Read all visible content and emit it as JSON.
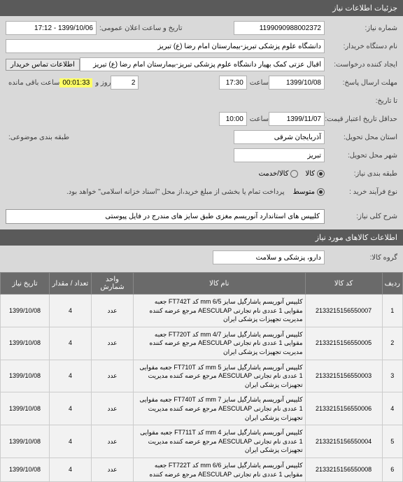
{
  "header": {
    "title": "جزئیات اطلاعات نیاز"
  },
  "form": {
    "need_no_label": "شماره نیاز:",
    "need_no": "1199090988002372",
    "announce_label": "تاریخ و ساعت اعلان عمومی:",
    "announce_value": "1399/10/06 - 17:12",
    "buyer_name_label": "نام دستگاه خریدار:",
    "buyer_name": "دانشگاه علوم پزشکی تبریز-بیمارستان امام رضا (ع) تبریز",
    "creator_label": "ایجاد کننده درخواست:",
    "creator": "اقبال عزتی کمک بهیار دانشگاه علوم پزشکی تبریز-بیمارستان امام رضا (ع) تبریز",
    "contact_btn": "اطلاعات تماس خریدار",
    "deadline_label": "مهلت ارسال پاسخ:",
    "deadline_date": "1399/10/08",
    "saat": "ساعت",
    "deadline_time": "17:30",
    "rooz_va": "روز و",
    "remain_num": "2",
    "timer": "00:01:33",
    "remain_label": "ساعت باقی مانده",
    "until_label": "تا تاریخ:",
    "credit_label": "حداقل تاریخ اعتبار قیمت: تا تاریخ",
    "credit_date": "1399/11/07",
    "credit_time": "10:00",
    "province_label": "استان محل تحویل:",
    "province": "آذربایجان شرقی",
    "also_label": "طبقه بندی موضوعی:",
    "city_label": "شهر محل تحویل:",
    "city": "تبریز",
    "class_label": "طبقه بندی نیاز:",
    "kala": "کالا",
    "khadamat": "کالا/خدمت",
    "process_label": "نوع فرآیند خرید :",
    "process_opt1": "متوسط",
    "process_note": "پرداخت تمام یا بخشی از مبلغ خرید،از محل \"اسناد خزانه اسلامی\" خواهد بود.",
    "desc_label": "شرح کلی نیاز:",
    "desc": "کلیپس های استاندارد آنوریسم مغزی طبق سایز های مندرج در فایل پیوستی"
  },
  "items_header": "اطلاعات کالاهای مورد نیاز",
  "group_label": "گروه کالا:",
  "group_value": "دارو، پزشکی و سلامت",
  "table": {
    "cols": [
      "ردیف",
      "کد کالا",
      "نام کالا",
      "واحد شمارش",
      "تعداد / مقدار",
      "تاریخ نیاز"
    ],
    "rows": [
      {
        "n": "1",
        "code": "2133215156550007",
        "name": "کلیپس آنوریسم یاشارگیل سایز mm 6/5 کد FT742T جعبه مقوایی 1 عددی نام تجارتی AESCULAP مرجع عرضه کننده مدیریت تجهیزات پزشکی ایران",
        "unit": "عدد",
        "qty": "4",
        "date": "1399/10/08"
      },
      {
        "n": "2",
        "code": "2133215156550005",
        "name": "کلیپس آنوریسم یاشارگیل سایز mm 4/7 کد FT720T جعبه مقوایی 1 عددی نام تجارتی AESCULAP مرجع عرضه کننده مدیریت تجهیزات پزشکی ایران",
        "unit": "عدد",
        "qty": "4",
        "date": "1399/10/08"
      },
      {
        "n": "3",
        "code": "2133215156550003",
        "name": "کلیپس آنوریسم یاشارگیل سایز mm 5 کد FT710T جعبه مقوایی 1 عددی نام تجارتی AESCULAP مرجع عرضه کننده مدیریت تجهیزات پزشکی ایران",
        "unit": "عدد",
        "qty": "4",
        "date": "1399/10/08"
      },
      {
        "n": "4",
        "code": "2133215156550006",
        "name": "کلیپس آنوریسم یاشارگیل سایز mm 7 کد FT740T جعبه مقوایی 1 عددی نام تجارتی AESCULAP مرجع عرضه کننده مدیریت تجهیزات پزشکی ایران",
        "unit": "عدد",
        "qty": "4",
        "date": "1399/10/08"
      },
      {
        "n": "5",
        "code": "2133215156550004",
        "name": "کلیپس آنوریسم یاشارگیل سایز mm 4 کد FT711T جعبه مقوایی 1 عددی نام تجارتی AESCULAP مرجع عرضه کننده مدیریت تجهیزات پزشکی ایران",
        "unit": "عدد",
        "qty": "4",
        "date": "1399/10/08"
      },
      {
        "n": "6",
        "code": "2133215156550008",
        "name": "کلیپس آنوریسم یاشارگیل سایز mm 6/6 کد FT722T جعبه مقوایی 1 عددی نام تجارتی AESCULAP مرجع عرضه کننده",
        "unit": "عدد",
        "qty": "4",
        "date": "1399/10/08"
      }
    ]
  }
}
